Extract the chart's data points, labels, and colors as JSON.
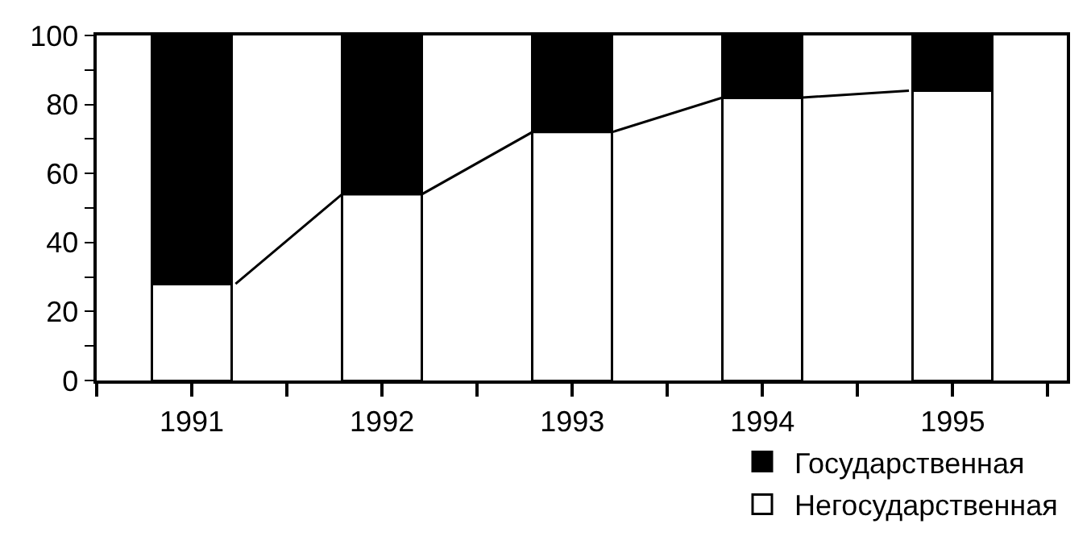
{
  "chart_data": {
    "type": "bar",
    "stacked": true,
    "x": [
      1991,
      1992,
      1993,
      1994,
      1995
    ],
    "series": [
      {
        "name": "Негосударственная",
        "color": "#ffffff",
        "values": [
          28,
          54,
          72,
          82,
          84
        ]
      },
      {
        "name": "Государственная",
        "color": "#000000",
        "values": [
          72,
          46,
          28,
          18,
          16
        ]
      },
      {
        "type": "line",
        "color": "#000000",
        "x": [
          1991.23,
          1991.79,
          1992.21,
          1992.79,
          1993.21,
          1993.79,
          1994.21,
          1994.77
        ],
        "values": [
          28,
          54,
          54,
          72,
          72,
          82,
          82,
          84
        ]
      }
    ],
    "xlim": [
      1990.5,
      1995.6
    ],
    "xticks": [
      {
        "value": 1990.5,
        "label": null
      },
      1991,
      {
        "value": 1991.5,
        "label": null
      },
      1992,
      {
        "value": 1992.5,
        "label": null
      },
      1993,
      {
        "value": 1993.5,
        "label": null
      },
      1994,
      {
        "value": 1994.5,
        "label": null
      },
      1995,
      {
        "value": 1995.5,
        "label": null
      }
    ],
    "ylim": [
      0,
      100
    ],
    "yticks": [
      0,
      {
        "value": 10,
        "label": null
      },
      20,
      {
        "value": 30,
        "label": null
      },
      40,
      {
        "value": 50,
        "label": null
      },
      60,
      {
        "value": 70,
        "label": null
      },
      80,
      {
        "value": 90,
        "label": null
      },
      100
    ],
    "legend": "bottom right",
    "marker": "none",
    "line_style": "solid"
  }
}
